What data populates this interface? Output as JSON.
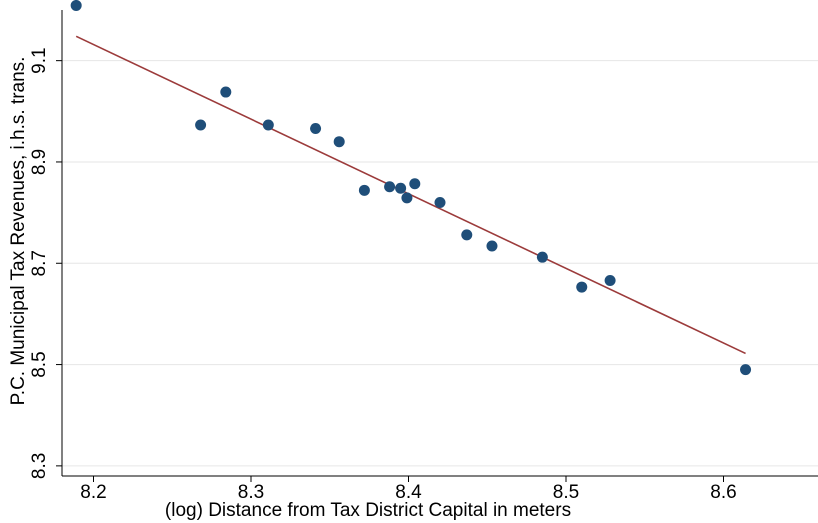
{
  "chart_data": {
    "type": "scatter",
    "title": "",
    "xlabel": "(log) Distance from Tax District Capital in meters",
    "ylabel": "P.C. Municipal Tax Revenues, i.h.s. trans.",
    "xlim": [
      8.18,
      8.66
    ],
    "ylim": [
      8.28,
      9.2
    ],
    "xticks": [
      "8.2",
      "8.3",
      "8.4",
      "8.5",
      "8.6"
    ],
    "yticks": [
      "8.3",
      "8.5",
      "8.7",
      "8.9",
      "9.1"
    ],
    "grid": "horizontal",
    "point_color": "#1f4e79",
    "line_color": "#9c3b3b",
    "points": [
      {
        "x": 8.189,
        "y": 9.209
      },
      {
        "x": 8.268,
        "y": 8.973
      },
      {
        "x": 8.284,
        "y": 9.038
      },
      {
        "x": 8.311,
        "y": 8.973
      },
      {
        "x": 8.341,
        "y": 8.966
      },
      {
        "x": 8.356,
        "y": 8.94
      },
      {
        "x": 8.372,
        "y": 8.844
      },
      {
        "x": 8.388,
        "y": 8.851
      },
      {
        "x": 8.395,
        "y": 8.848
      },
      {
        "x": 8.399,
        "y": 8.829
      },
      {
        "x": 8.404,
        "y": 8.857
      },
      {
        "x": 8.42,
        "y": 8.82
      },
      {
        "x": 8.437,
        "y": 8.756
      },
      {
        "x": 8.453,
        "y": 8.734
      },
      {
        "x": 8.485,
        "y": 8.712
      },
      {
        "x": 8.51,
        "y": 8.653
      },
      {
        "x": 8.528,
        "y": 8.666
      },
      {
        "x": 8.614,
        "y": 8.49
      }
    ],
    "fit_line": {
      "x": [
        8.189,
        8.614
      ],
      "y": [
        9.148,
        8.522
      ]
    }
  }
}
